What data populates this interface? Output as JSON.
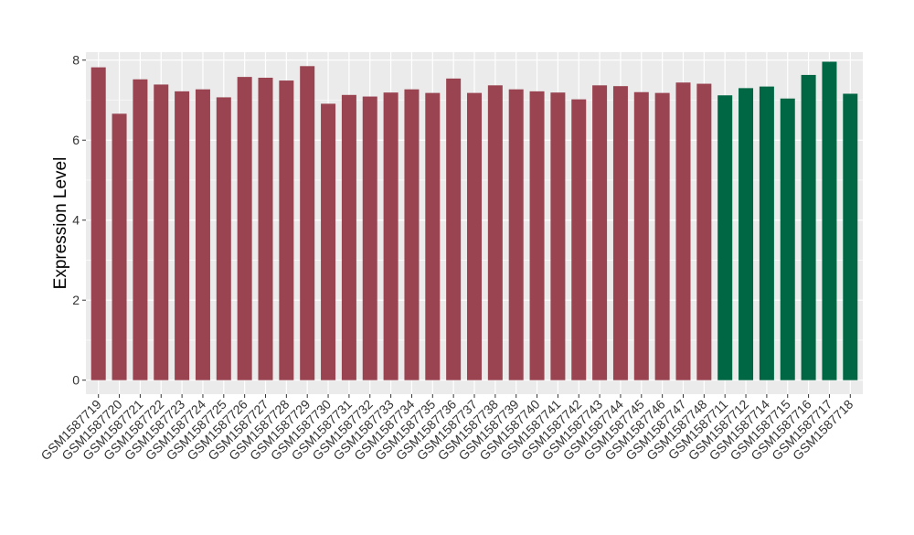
{
  "chart_data": {
    "type": "bar",
    "ylabel": "Expression Level",
    "xlabel": "",
    "ylim": [
      -0.35,
      8.2
    ],
    "yticks": [
      0,
      2,
      4,
      6,
      8
    ],
    "grid": true,
    "legend": "none",
    "categories": [
      "GSM1587719",
      "GSM1587720",
      "GSM1587721",
      "GSM1587722",
      "GSM1587723",
      "GSM1587724",
      "GSM1587725",
      "GSM1587726",
      "GSM1587727",
      "GSM1587728",
      "GSM1587729",
      "GSM1587730",
      "GSM1587731",
      "GSM1587732",
      "GSM1587733",
      "GSM1587734",
      "GSM1587735",
      "GSM1587736",
      "GSM1587737",
      "GSM1587738",
      "GSM1587739",
      "GSM1587740",
      "GSM1587741",
      "GSM1587742",
      "GSM1587743",
      "GSM1587744",
      "GSM1587745",
      "GSM1587746",
      "GSM1587747",
      "GSM1587748",
      "GSM1587711",
      "GSM1587712",
      "GSM1587714",
      "GSM1587715",
      "GSM1587716",
      "GSM1587717",
      "GSM1587718"
    ],
    "values": [
      7.82,
      6.66,
      7.52,
      7.39,
      7.22,
      7.27,
      7.07,
      7.58,
      7.56,
      7.49,
      7.85,
      6.91,
      7.13,
      7.09,
      7.19,
      7.27,
      7.18,
      7.54,
      7.18,
      7.37,
      7.27,
      7.22,
      7.19,
      7.02,
      7.37,
      7.35,
      7.2,
      7.18,
      7.44,
      7.41,
      7.12,
      7.3,
      7.34,
      7.04,
      7.63,
      7.96,
      7.16
    ],
    "groups": [
      "a",
      "a",
      "a",
      "a",
      "a",
      "a",
      "a",
      "a",
      "a",
      "a",
      "a",
      "a",
      "a",
      "a",
      "a",
      "a",
      "a",
      "a",
      "a",
      "a",
      "a",
      "a",
      "a",
      "a",
      "a",
      "a",
      "a",
      "a",
      "a",
      "a",
      "b",
      "b",
      "b",
      "b",
      "b",
      "b",
      "b"
    ],
    "colors": {
      "a": "#9a4451",
      "b": "#006744"
    },
    "panel_background": "#ebebeb",
    "grid_color": "#ffffff"
  }
}
